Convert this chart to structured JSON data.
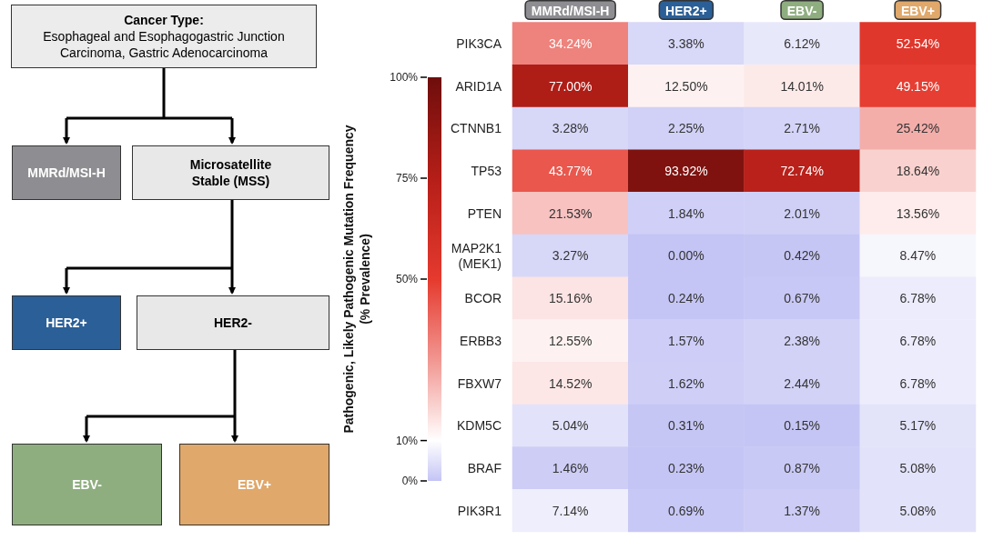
{
  "chart_data": [
    {
      "type": "other",
      "annotations": [
        "Cancer Type:",
        "Esophageal and Esophagogastric Junction Carcinoma, Gastric Adenocarcinoma",
        "MMRd/MSI-H",
        "Microsatellite Stable (MSS)",
        "HER2+",
        "HER2-",
        "EBV-",
        "EBV+"
      ]
    },
    {
      "type": "heatmap",
      "clabel": "Pathogenic, Likely Pathogenic Mutation Frequency\n(% Prevalence)",
      "categories": [
        "MMRd/MSI-H",
        "HER2+",
        "EBV-",
        "EBV+"
      ],
      "y_categories": [
        "PIK3CA",
        "ARID1A",
        "CTNNB1",
        "TP53",
        "PTEN",
        "MAP2K1\n(MEK1)",
        "BCOR",
        "ERBB3",
        "FBXW7",
        "KDM5C",
        "BRAF",
        "PIK3R1"
      ],
      "cells": [
        [
          34.24,
          3.38,
          6.12,
          52.54
        ],
        [
          77.0,
          12.5,
          14.01,
          49.15
        ],
        [
          3.28,
          2.25,
          2.71,
          25.42
        ],
        [
          43.77,
          93.92,
          72.74,
          18.64
        ],
        [
          21.53,
          1.84,
          2.01,
          13.56
        ],
        [
          3.27,
          0.0,
          0.42,
          8.47
        ],
        [
          15.16,
          0.24,
          0.67,
          6.78
        ],
        [
          12.55,
          1.57,
          2.38,
          6.78
        ],
        [
          14.52,
          1.62,
          2.44,
          6.78
        ],
        [
          5.04,
          0.31,
          0.15,
          5.17
        ],
        [
          1.46,
          0.23,
          0.87,
          5.08
        ],
        [
          7.14,
          0.69,
          1.37,
          5.08
        ]
      ],
      "cell_labels": [
        [
          "34.24%",
          "3.38%",
          "6.12%",
          "52.54%"
        ],
        [
          "77.00%",
          "12.50%",
          "14.01%",
          "49.15%"
        ],
        [
          "3.28%",
          "2.25%",
          "2.71%",
          "25.42%"
        ],
        [
          "43.77%",
          "93.92%",
          "72.74%",
          "18.64%"
        ],
        [
          "21.53%",
          "1.84%",
          "2.01%",
          "13.56%"
        ],
        [
          "3.27%",
          "0.00%",
          "0.42%",
          "8.47%"
        ],
        [
          "15.16%",
          "0.24%",
          "0.67%",
          "6.78%"
        ],
        [
          "12.55%",
          "1.57%",
          "2.38%",
          "6.78%"
        ],
        [
          "14.52%",
          "1.62%",
          "2.44%",
          "6.78%"
        ],
        [
          "5.04%",
          "0.31%",
          "0.15%",
          "5.17%"
        ],
        [
          "1.46%",
          "0.23%",
          "0.87%",
          "5.08%"
        ],
        [
          "7.14%",
          "0.69%",
          "1.37%",
          "5.08%"
        ]
      ],
      "clim": [
        0,
        100
      ],
      "cticks": [
        {
          "value": 0,
          "label": "0%"
        },
        {
          "value": 10,
          "label": "10%"
        },
        {
          "value": 50,
          "label": "50%"
        },
        {
          "value": 75,
          "label": "75%"
        },
        {
          "value": 100,
          "label": "100%"
        }
      ]
    }
  ]
}
